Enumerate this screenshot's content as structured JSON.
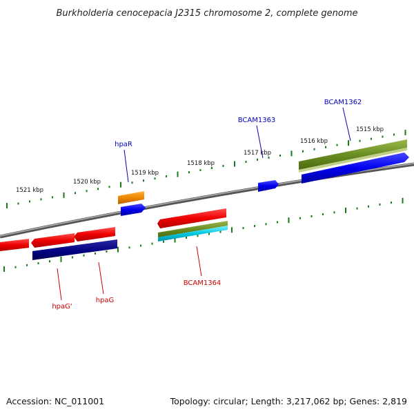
{
  "title": "Burkholderia cenocepacia J2315 chromosome 2, complete genome",
  "footer": {
    "accession": "Accession: NC_011001",
    "summary": "Topology: circular; Length: 3,217,062 bp; Genes: 2,819"
  },
  "ticks": [
    {
      "label": "1521 kbp"
    },
    {
      "label": "1520 kbp"
    },
    {
      "label": "1519 kbp"
    },
    {
      "label": "1518 kbp"
    },
    {
      "label": "1517 kbp"
    },
    {
      "label": "1516 kbp"
    },
    {
      "label": "1515 kbp"
    }
  ],
  "gene_labels": [
    {
      "text": "hpaR",
      "color": "#0000bb"
    },
    {
      "text": "BCAM1363",
      "color": "#0000bb"
    },
    {
      "text": "BCAM1362",
      "color": "#0000bb"
    },
    {
      "text": "BCAM1364",
      "color": "#cc0000"
    },
    {
      "text": "hpaG'",
      "color": "#cc0000"
    },
    {
      "text": "hpaG",
      "color": "#cc0000"
    }
  ],
  "colors": {
    "chromosome": "#7a7a7a",
    "tick": "#1a7a1a",
    "gene_forward": "#0000ee",
    "gene_reverse": "#ee0000",
    "gene_dark": "#000080",
    "gene_orange": "#ee8800",
    "feature_olive": "#6b8e23",
    "feature_cyan": "#00c8e0"
  }
}
